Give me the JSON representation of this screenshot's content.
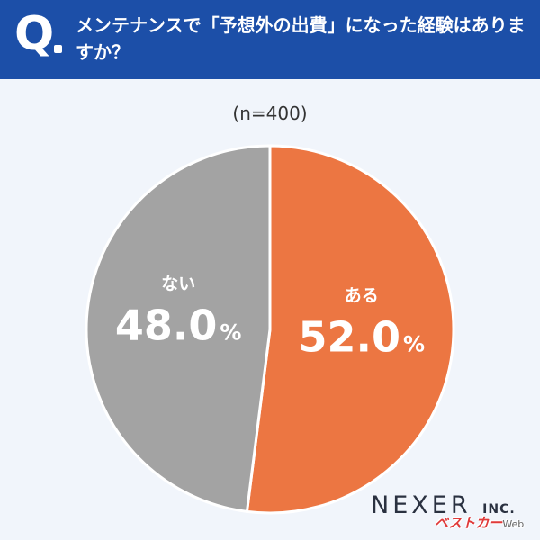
{
  "header": {
    "q_mark": "Q",
    "question": "メンテナンスで「予想外の出費」になった経験はありますか？"
  },
  "chart_data": {
    "type": "pie",
    "sample_size_label": "(n=400)",
    "slices": [
      {
        "label": "ある",
        "value": 52.0,
        "display": "52.0",
        "unit": "%",
        "color": "#ec7642"
      },
      {
        "label": "ない",
        "value": 48.0,
        "display": "48.0",
        "unit": "%",
        "color": "#a3a3a3"
      }
    ],
    "start_angle_deg": 0,
    "direction": "clockwise"
  },
  "footer": {
    "brand_main": "NEXER",
    "brand_sub": "INC.",
    "watermark": "ベストカー",
    "watermark_suffix": "Web"
  }
}
